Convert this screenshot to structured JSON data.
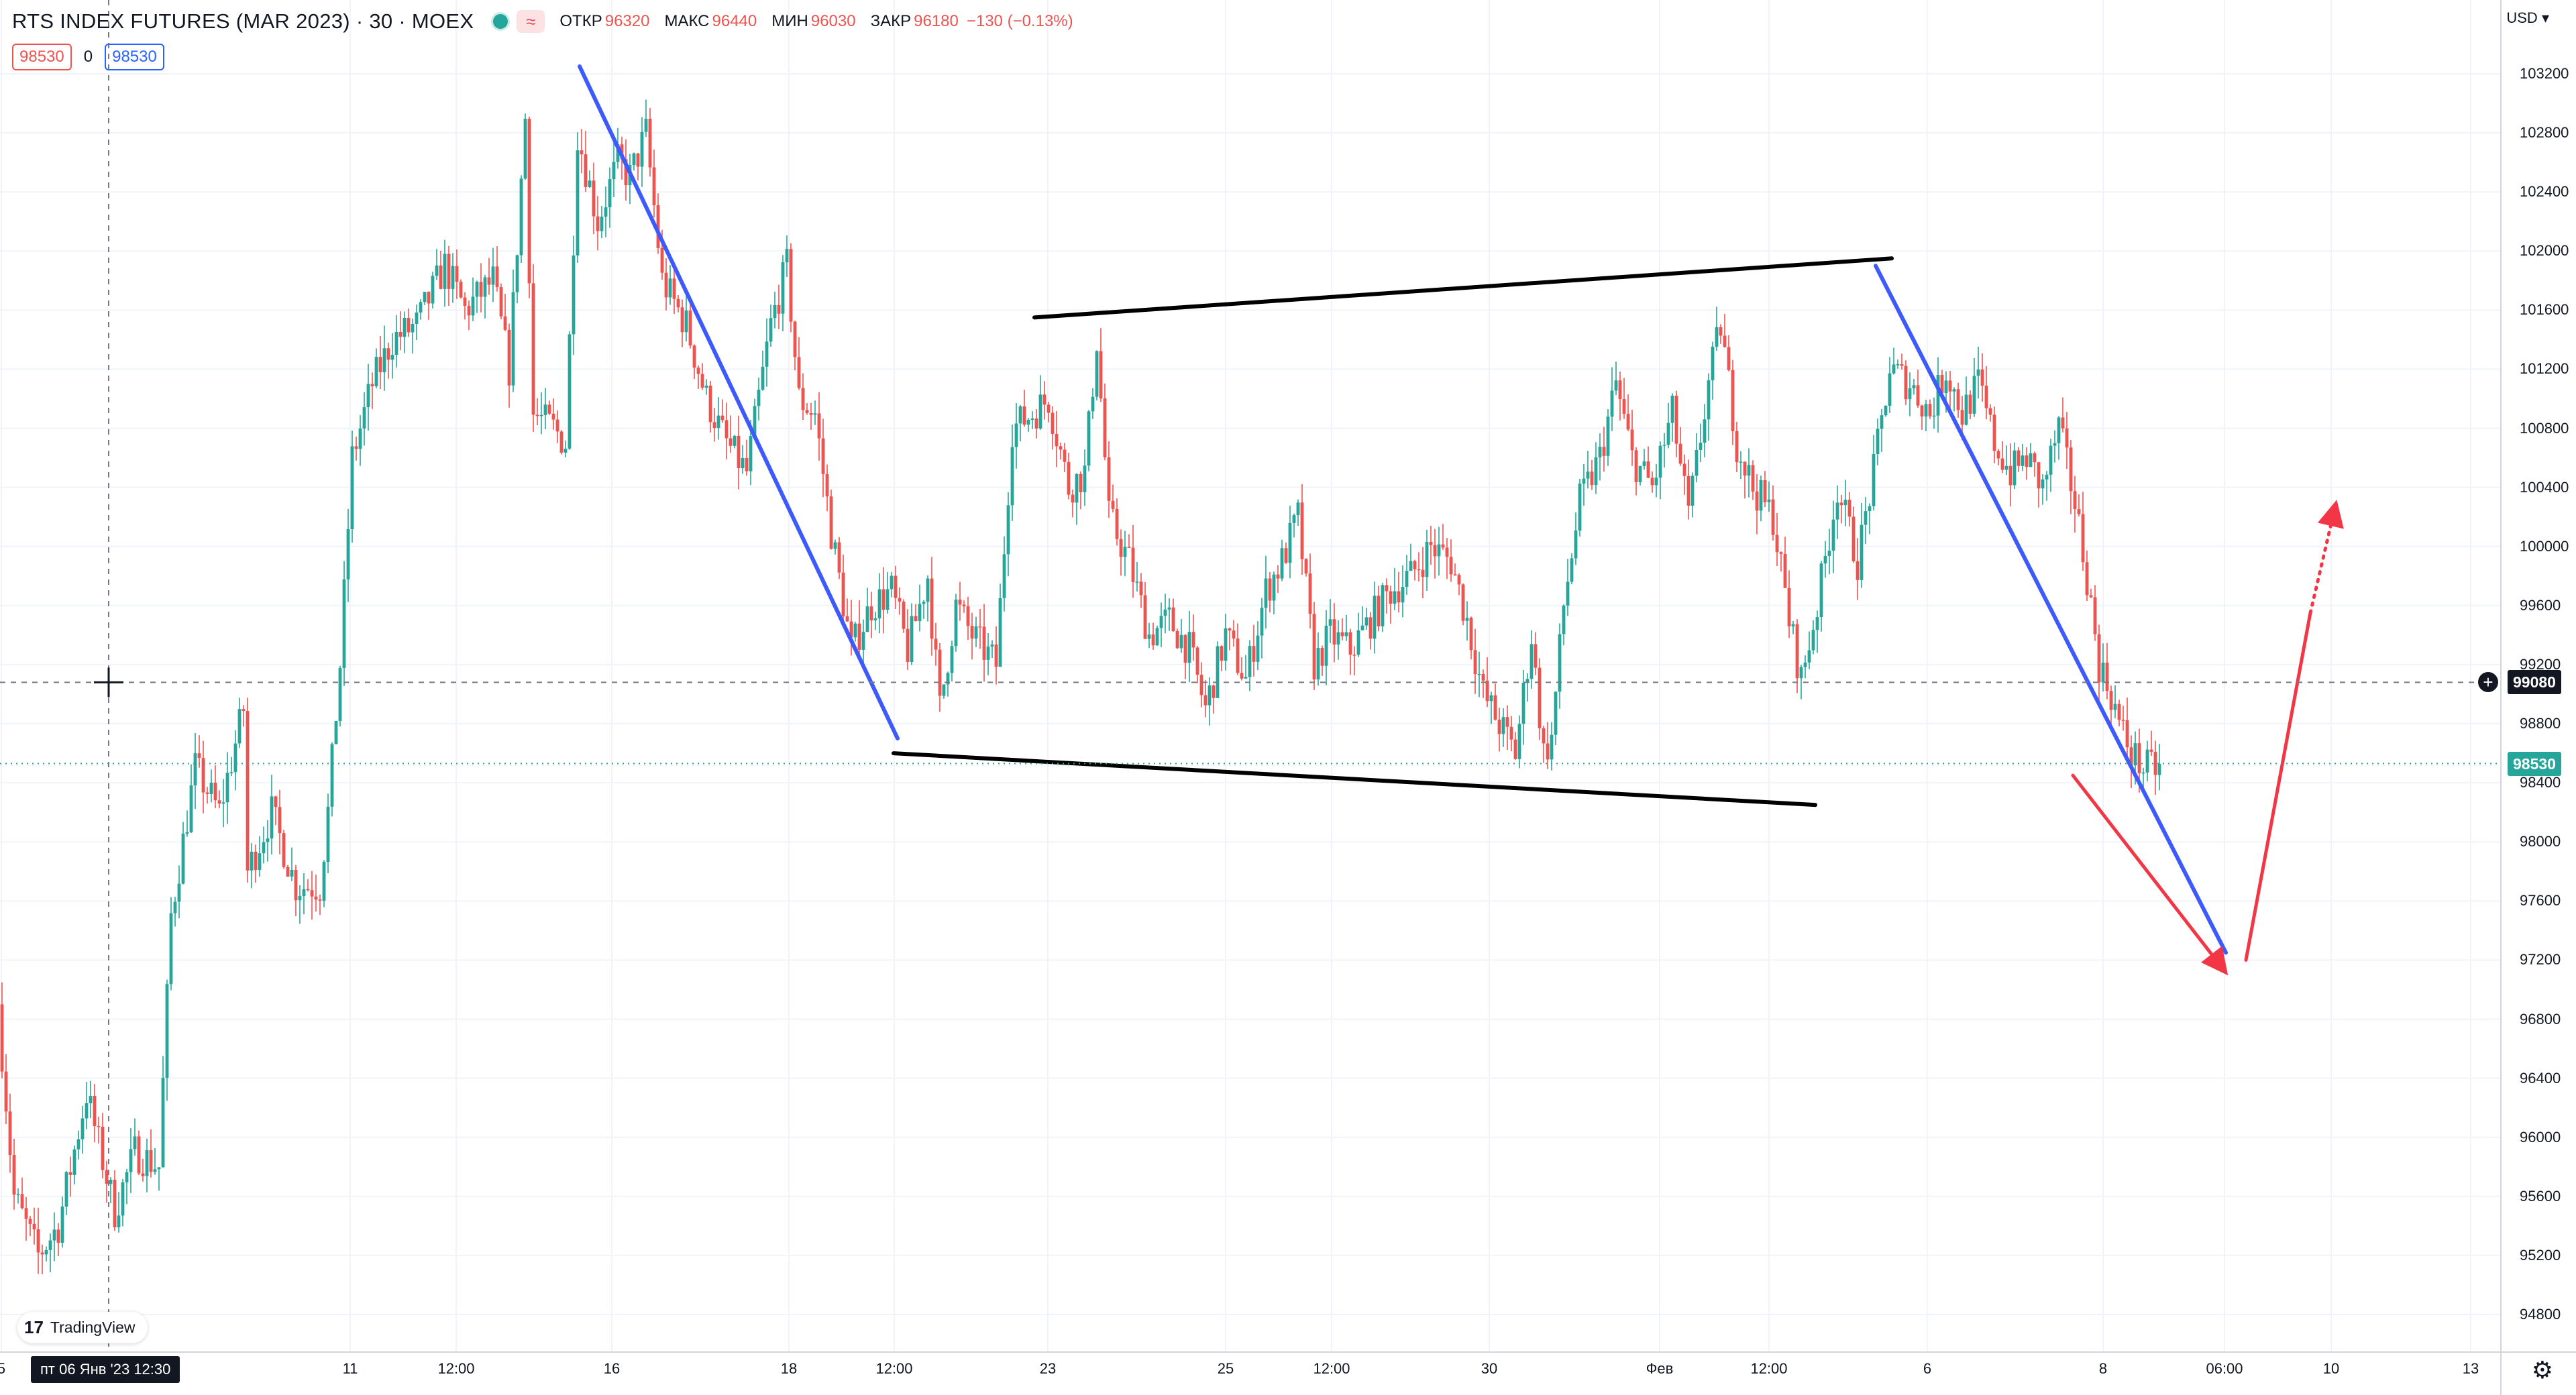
{
  "header": {
    "symbol": "RTS INDEX FUTURES (MAR 2023) · 30 · MOEX",
    "wave_icon": "≈",
    "open_label": "ОТКР",
    "open_value": "96320",
    "high_label": "МАКС",
    "high_value": "96440",
    "low_label": "МИН",
    "low_value": "96030",
    "close_label": "ЗАКР",
    "close_value": "96180",
    "change": "−130 (−0.13%)"
  },
  "trade": {
    "sell_price": "98530",
    "spread": "0",
    "buy_price": "98530"
  },
  "axis": {
    "currency": "USD",
    "current_price_label": "98530",
    "crosshair_price_label": "99080",
    "crosshair_date_label": "пт 06 Янв '23   12:30",
    "x_ticks": [
      {
        "label": "5"
      },
      {
        "label": "11"
      },
      {
        "label": "12:00"
      },
      {
        "label": "16"
      },
      {
        "label": "18"
      },
      {
        "label": "12:00"
      },
      {
        "label": "23"
      },
      {
        "label": "25"
      },
      {
        "label": "12:00"
      },
      {
        "label": "30"
      },
      {
        "label": "Фев"
      },
      {
        "label": "12:00"
      },
      {
        "label": "6"
      },
      {
        "label": "8"
      },
      {
        "label": "06:00"
      },
      {
        "label": "10"
      },
      {
        "label": "13"
      }
    ]
  },
  "branding": {
    "logo_text": "TradingView",
    "logo_mark": "17"
  },
  "colors": {
    "up": "#26a69a",
    "down": "#ef5350",
    "trend_blue": "#3d5afe",
    "trend_black": "#000000",
    "forecast_red": "#f23645",
    "grid": "#f0f3fa",
    "background": "#ffffff"
  },
  "chart_data": {
    "type": "candlestick",
    "title": "RTS INDEX FUTURES (MAR 2023) · 30 · MOEX",
    "ylim": [
      94600,
      103500
    ],
    "y_ticks": [
      94800,
      95200,
      95600,
      96000,
      96400,
      96800,
      97200,
      97600,
      98000,
      98400,
      98800,
      99200,
      99600,
      100000,
      100400,
      100800,
      101200,
      101600,
      102000,
      102400,
      102800,
      103200
    ],
    "current_price": 98530,
    "crosshair_price": 99080,
    "price_path": [
      [
        0.0,
        96900
      ],
      [
        0.4,
        95600
      ],
      [
        1.0,
        95200
      ],
      [
        1.5,
        95400
      ],
      [
        2.2,
        96300
      ],
      [
        2.9,
        95500
      ],
      [
        3.4,
        95900
      ],
      [
        4.0,
        95800
      ],
      [
        4.3,
        97500
      ],
      [
        4.9,
        98500
      ],
      [
        5.5,
        98200
      ],
      [
        6.1,
        98900
      ],
      [
        6.2,
        97800
      ],
      [
        6.8,
        98200
      ],
      [
        7.4,
        97700
      ],
      [
        8.0,
        97700
      ],
      [
        8.2,
        98200
      ],
      [
        8.5,
        99200
      ],
      [
        8.8,
        100600
      ],
      [
        9.3,
        101100
      ],
      [
        9.8,
        101400
      ],
      [
        10.4,
        101500
      ],
      [
        11.1,
        101900
      ],
      [
        11.6,
        101600
      ],
      [
        12.3,
        101800
      ],
      [
        12.7,
        101200
      ],
      [
        13.1,
        102900
      ],
      [
        13.3,
        100900
      ],
      [
        13.8,
        100800
      ],
      [
        14.1,
        100700
      ],
      [
        14.4,
        102800
      ],
      [
        14.9,
        102200
      ],
      [
        15.4,
        102600
      ],
      [
        15.7,
        102500
      ],
      [
        16.1,
        102800
      ],
      [
        16.5,
        101800
      ],
      [
        17.1,
        101500
      ],
      [
        17.6,
        101000
      ],
      [
        18.1,
        100700
      ],
      [
        18.6,
        100500
      ],
      [
        19.2,
        101500
      ],
      [
        19.6,
        101900
      ],
      [
        19.9,
        101000
      ],
      [
        20.3,
        100900
      ],
      [
        20.7,
        100100
      ],
      [
        21.2,
        99300
      ],
      [
        21.7,
        99600
      ],
      [
        22.2,
        99700
      ],
      [
        22.6,
        99300
      ],
      [
        23.1,
        99800
      ],
      [
        23.4,
        98900
      ],
      [
        23.8,
        99600
      ],
      [
        24.2,
        99400
      ],
      [
        24.8,
        99200
      ],
      [
        25.2,
        100800
      ],
      [
        25.7,
        100900
      ],
      [
        26.1,
        101000
      ],
      [
        26.6,
        100400
      ],
      [
        27.0,
        100500
      ],
      [
        27.3,
        101400
      ],
      [
        27.6,
        100200
      ],
      [
        28.1,
        99900
      ],
      [
        28.6,
        99400
      ],
      [
        29.1,
        99500
      ],
      [
        29.6,
        99300
      ],
      [
        30.0,
        98900
      ],
      [
        30.5,
        99400
      ],
      [
        31.0,
        99100
      ],
      [
        31.5,
        99700
      ],
      [
        31.9,
        99900
      ],
      [
        32.3,
        100200
      ],
      [
        32.7,
        99200
      ],
      [
        33.1,
        99400
      ],
      [
        33.6,
        99300
      ],
      [
        34.1,
        99500
      ],
      [
        34.6,
        99700
      ],
      [
        35.1,
        99800
      ],
      [
        35.6,
        100000
      ],
      [
        36.1,
        99900
      ],
      [
        36.5,
        99500
      ],
      [
        36.9,
        99000
      ],
      [
        37.3,
        98800
      ],
      [
        37.7,
        98600
      ],
      [
        38.1,
        99400
      ],
      [
        38.4,
        98600
      ],
      [
        38.6,
        98700
      ],
      [
        38.9,
        99600
      ],
      [
        39.3,
        100300
      ],
      [
        39.8,
        100600
      ],
      [
        40.2,
        101100
      ],
      [
        40.6,
        100600
      ],
      [
        41.1,
        100400
      ],
      [
        41.6,
        100900
      ],
      [
        42.0,
        100200
      ],
      [
        42.5,
        101100
      ],
      [
        42.8,
        101500
      ],
      [
        43.2,
        100700
      ],
      [
        43.6,
        100400
      ],
      [
        44.1,
        100200
      ],
      [
        44.5,
        99500
      ],
      [
        44.8,
        99100
      ],
      [
        45.2,
        99600
      ],
      [
        45.7,
        100400
      ],
      [
        46.2,
        99900
      ],
      [
        46.6,
        100500
      ],
      [
        47.0,
        101200
      ],
      [
        47.5,
        101100
      ],
      [
        48.0,
        100900
      ],
      [
        48.4,
        101200
      ],
      [
        48.8,
        100900
      ],
      [
        49.2,
        101100
      ],
      [
        49.6,
        100700
      ],
      [
        50.0,
        100500
      ],
      [
        50.4,
        100600
      ],
      [
        50.8,
        100400
      ],
      [
        51.2,
        100800
      ],
      [
        51.6,
        100300
      ],
      [
        51.9,
        99800
      ],
      [
        52.2,
        99200
      ],
      [
        52.5,
        99000
      ],
      [
        52.7,
        98800
      ],
      [
        53.0,
        98600
      ],
      [
        53.3,
        98500
      ],
      [
        53.7,
        98500
      ]
    ],
    "trend_lines": [
      {
        "color": "blue",
        "points": [
          [
            14.4,
            103250
          ],
          [
            22.3,
            98700
          ]
        ]
      },
      {
        "color": "black",
        "points": [
          [
            25.7,
            101550
          ],
          [
            47.0,
            101950
          ]
        ]
      },
      {
        "color": "black",
        "points": [
          [
            22.2,
            98600
          ],
          [
            45.1,
            98250
          ]
        ]
      },
      {
        "color": "blue",
        "points": [
          [
            46.6,
            101900
          ],
          [
            55.3,
            97250
          ]
        ]
      }
    ],
    "forecast": [
      {
        "style": "solid",
        "points": [
          [
            51.5,
            98450
          ],
          [
            55.2,
            97150
          ]
        ]
      },
      {
        "style": "solid",
        "points": [
          [
            55.8,
            97200
          ],
          [
            57.4,
            99550
          ]
        ]
      },
      {
        "style": "dotted",
        "points": [
          [
            57.4,
            99550
          ],
          [
            58.0,
            100250
          ]
        ]
      }
    ]
  }
}
